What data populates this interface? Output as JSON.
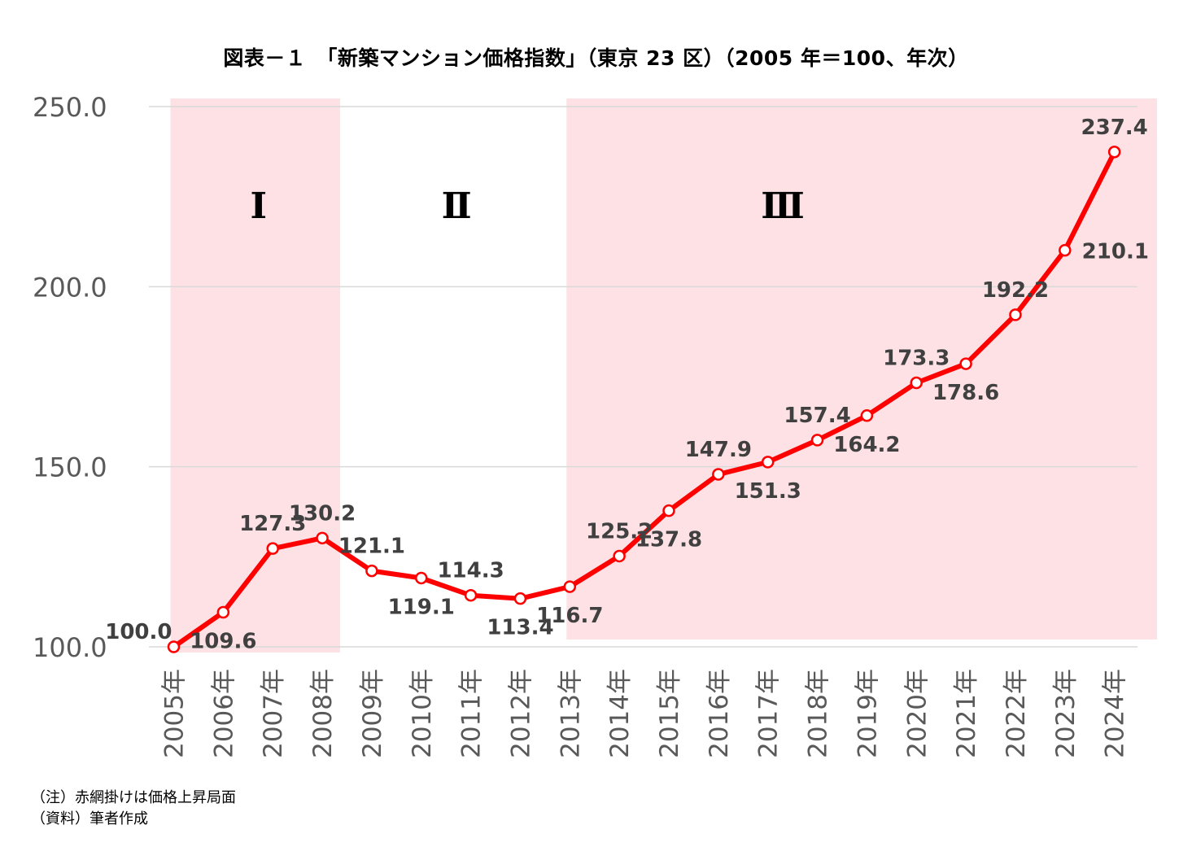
{
  "title": "図表－１　「新築マンション価格指数」（東京 23 区）（2005 年＝100、年次）",
  "notes": [
    "（注）赤網掛けは価格上昇局面",
    "（資料）筆者作成"
  ],
  "colors": {
    "line": "#ff0000",
    "shade": "#fde1e5",
    "grid": "#d9d9d9",
    "label": "#404040"
  },
  "chart_data": {
    "type": "line",
    "title": "図表－１　「新築マンション価格指数」（東京 23 区）（2005 年＝100、年次）",
    "xlabel": "",
    "ylabel": "",
    "categories": [
      "2005年",
      "2006年",
      "2007年",
      "2008年",
      "2009年",
      "2010年",
      "2011年",
      "2012年",
      "2013年",
      "2014年",
      "2015年",
      "2016年",
      "2017年",
      "2018年",
      "2019年",
      "2020年",
      "2021年",
      "2022年",
      "2023年",
      "2024年"
    ],
    "values": [
      100.0,
      109.6,
      127.3,
      130.2,
      121.1,
      119.1,
      114.3,
      113.4,
      116.7,
      125.2,
      137.8,
      147.9,
      151.3,
      157.4,
      164.2,
      173.3,
      178.6,
      192.2,
      210.1,
      237.4
    ],
    "data_labels": [
      "100.0",
      "109.6",
      "127.3",
      "130.2",
      "121.1",
      "119.1",
      "114.3",
      "113.4",
      "116.7",
      "125.2",
      "137.8",
      "147.9",
      "151.3",
      "157.4",
      "164.2",
      "173.3",
      "178.6",
      "192.2",
      "210.1",
      "237.4"
    ],
    "label_position": [
      "left",
      "below",
      "above",
      "above",
      "above",
      "below",
      "above",
      "below",
      "below",
      "above",
      "below",
      "above",
      "below",
      "above",
      "below",
      "above",
      "below",
      "above",
      "below",
      "above"
    ],
    "ylim": [
      100,
      250
    ],
    "yticks": [
      "100.0",
      "150.0",
      "200.0",
      "250.0"
    ],
    "grid": true,
    "legend": "none",
    "phases": [
      {
        "label": "Ⅰ",
        "start": "2005年",
        "end": "2008年",
        "shaded": true
      },
      {
        "label": "Ⅱ",
        "start": "2009年",
        "end": "2012年",
        "shaded": false
      },
      {
        "label": "Ⅲ",
        "start": "2013年",
        "end": "2024年",
        "shaded": true
      }
    ]
  }
}
